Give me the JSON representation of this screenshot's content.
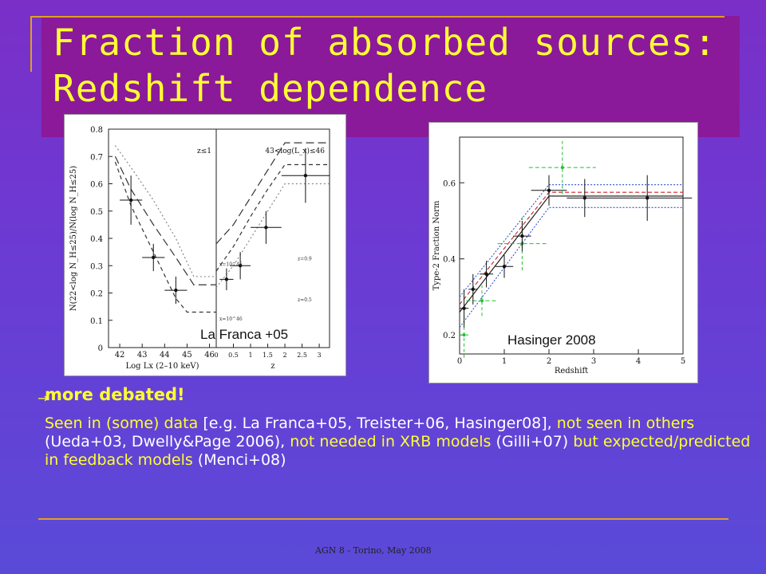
{
  "slide": {
    "title_line1": "Fraction of absorbed sources:",
    "title_line2": "Redshift dependence",
    "caption_left": "La Franca +05",
    "caption_right": "Hasinger 2008",
    "bullet_arrow": "→",
    "bullet_heading": "more debated!",
    "body": [
      {
        "text": "Seen in (some) data ",
        "color": "yellow"
      },
      {
        "text": "[e.g. La Franca+05, Treister+06, Hasinger08],",
        "color": "white"
      },
      {
        "text": " not seen in others ",
        "color": "yellow"
      },
      {
        "text": "(Ueda+03, Dwelly&Page 2006), ",
        "color": "white"
      },
      {
        "text": "not needed in XRB models ",
        "color": "yellow"
      },
      {
        "text": "(Gilli+07) ",
        "color": "white"
      },
      {
        "text": "but expected/predicted  in feedback models ",
        "color": "yellow"
      },
      {
        "text": "(Menci+08)",
        "color": "white"
      }
    ],
    "footer": "AGN 8 - Torino, May 2008"
  },
  "colors": {
    "title": "#ffff33",
    "title_bg": "#8a1a9a",
    "accent_line": "#e0a020"
  },
  "chart_data": [
    {
      "type": "line",
      "panel": "left",
      "ylabel": "N(22<log N_H≤25)/N(log N_H≤25)",
      "ylim": [
        0,
        0.8
      ],
      "yticks": [
        "0",
        "0.1",
        "0.2",
        "0.3",
        "0.4",
        "0.5",
        "0.6",
        "0.7",
        "0.8"
      ],
      "subplots": [
        {
          "label": "z≤1",
          "xlabel": "Log Lx (2–10 keV)",
          "xlim": [
            41.5,
            46.3
          ],
          "xticks": [
            "42",
            "43",
            "44",
            "45",
            "46"
          ],
          "points": [
            {
              "x": 42.5,
              "y": 0.54,
              "xerr": 0.5,
              "yerr": 0.09
            },
            {
              "x": 43.5,
              "y": 0.33,
              "xerr": 0.5,
              "yerr": 0.05
            },
            {
              "x": 44.5,
              "y": 0.21,
              "xerr": 0.5,
              "yerr": 0.05
            }
          ],
          "series": [
            {
              "style": "long-dash",
              "x": [
                41.8,
                42.5,
                43.5,
                44.5,
                45.3,
                46.3
              ],
              "y": [
                0.7,
                0.58,
                0.45,
                0.33,
                0.23,
                0.23
              ]
            },
            {
              "style": "dash",
              "x": [
                41.8,
                42.5,
                43.5,
                44.5,
                45.0,
                46.3
              ],
              "y": [
                0.68,
                0.52,
                0.35,
                0.18,
                0.13,
                0.13
              ]
            },
            {
              "style": "dot",
              "x": [
                41.8,
                42.5,
                43.5,
                44.5,
                45.3,
                46.3
              ],
              "y": [
                0.74,
                0.66,
                0.54,
                0.4,
                0.26,
                0.26
              ]
            }
          ]
        },
        {
          "label": "43<log(L_x)≤46",
          "xlabel": "z",
          "xlim": [
            0,
            3.3
          ],
          "xticks": [
            "0",
            "0.5",
            "1",
            "1.5",
            "2",
            "2.5",
            "3"
          ],
          "points": [
            {
              "x": 0.3,
              "y": 0.25,
              "xerr": 0.2,
              "yerr": 0.04
            },
            {
              "x": 0.7,
              "y": 0.3,
              "xerr": 0.3,
              "yerr": 0.05
            },
            {
              "x": 1.45,
              "y": 0.44,
              "xerr": 0.45,
              "yerr": 0.06
            },
            {
              "x": 2.6,
              "y": 0.63,
              "xerr": 0.7,
              "yerr": 0.1
            }
          ],
          "curve_labels": [
            "z=0.9",
            "z=0.5",
            "x=10^45",
            "x=10^46"
          ],
          "series": [
            {
              "style": "long-dash",
              "x": [
                0,
                0.5,
                1.0,
                1.5,
                2.0,
                3.3
              ],
              "y": [
                0.38,
                0.45,
                0.55,
                0.65,
                0.75,
                0.75
              ]
            },
            {
              "style": "dash",
              "x": [
                0,
                0.5,
                1.0,
                1.5,
                2.0,
                3.3
              ],
              "y": [
                0.28,
                0.37,
                0.48,
                0.58,
                0.67,
                0.67
              ]
            },
            {
              "style": "dot",
              "x": [
                0,
                0.5,
                1.0,
                1.5,
                2.0,
                3.3
              ],
              "y": [
                0.22,
                0.3,
                0.4,
                0.5,
                0.6,
                0.6
              ]
            }
          ]
        }
      ]
    },
    {
      "type": "line",
      "panel": "right",
      "xlabel": "Redshift",
      "ylabel": "Type-2 Fraction Norm",
      "xlim": [
        0,
        5
      ],
      "ylim": [
        0.15,
        0.72
      ],
      "xticks": [
        "0",
        "1",
        "2",
        "3",
        "4",
        "5"
      ],
      "yticks": [
        "0.2",
        "0.4",
        "0.6"
      ],
      "points": [
        {
          "x": 0.1,
          "y": 0.27,
          "xerr": 0.1,
          "yerr": 0.05
        },
        {
          "x": 0.3,
          "y": 0.32,
          "xerr": 0.1,
          "yerr": 0.04
        },
        {
          "x": 0.6,
          "y": 0.36,
          "xerr": 0.15,
          "yerr": 0.035
        },
        {
          "x": 1.0,
          "y": 0.38,
          "xerr": 0.2,
          "yerr": 0.03
        },
        {
          "x": 1.4,
          "y": 0.46,
          "xerr": 0.2,
          "yerr": 0.04
        },
        {
          "x": 2.0,
          "y": 0.58,
          "xerr": 0.4,
          "yerr": 0.04
        },
        {
          "x": 2.8,
          "y": 0.56,
          "xerr": 0.4,
          "yerr": 0.05
        },
        {
          "x": 4.2,
          "y": 0.56,
          "xerr": 1.0,
          "yerr": 0.06
        }
      ],
      "green_points": [
        {
          "x": 0.1,
          "y": 0.2,
          "xerr": 0.1,
          "yerr": 0.06
        },
        {
          "x": 0.5,
          "y": 0.29,
          "xerr": 0.35,
          "yerr": 0.04
        },
        {
          "x": 1.4,
          "y": 0.44,
          "xerr": 0.55,
          "yerr": 0.07
        },
        {
          "x": 2.3,
          "y": 0.64,
          "xerr": 0.75,
          "yerr": 0.07
        }
      ],
      "series": [
        {
          "style": "solid-black",
          "x": [
            0,
            2.0,
            5
          ],
          "y": [
            0.26,
            0.565,
            0.565
          ]
        },
        {
          "style": "dash-red",
          "x": [
            0,
            2.0,
            5
          ],
          "y": [
            0.28,
            0.575,
            0.575
          ]
        },
        {
          "style": "blue-upper",
          "x": [
            0,
            2.0,
            5
          ],
          "y": [
            0.3,
            0.595,
            0.595
          ]
        },
        {
          "style": "blue-lower",
          "x": [
            0,
            2.0,
            5
          ],
          "y": [
            0.22,
            0.535,
            0.535
          ]
        }
      ]
    }
  ]
}
